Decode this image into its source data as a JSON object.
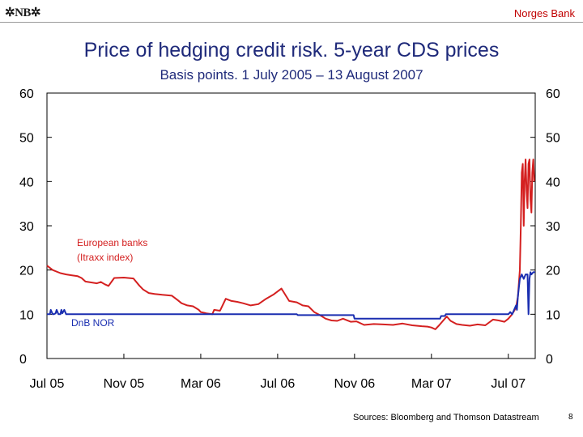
{
  "header": {
    "logo_text": "✲NB✲",
    "bank_name": "Norges Bank"
  },
  "chart_data": {
    "type": "line",
    "title": "Price of hedging credit risk. 5-year CDS prices",
    "subtitle": "Basis points. 1 July 2005 – 13 August 2007",
    "xlabel": "",
    "ylabel": "",
    "ylim": [
      0,
      60
    ],
    "yticks": [
      0,
      10,
      20,
      30,
      40,
      50,
      60
    ],
    "xlim_months": [
      0,
      25.4
    ],
    "xtick_labels": [
      "Jul 05",
      "Nov 05",
      "Mar 06",
      "Jul 06",
      "Nov 06",
      "Mar 07",
      "Jul 07"
    ],
    "xtick_months": [
      0,
      4,
      8,
      12,
      16,
      20,
      24
    ],
    "grid": false,
    "series": [
      {
        "name": "European banks (Itraxx index)",
        "label_lines": [
          "European banks",
          "(Itraxx index)"
        ],
        "color": "#d42020",
        "x": [
          0,
          0.3,
          0.7,
          1.0,
          1.3,
          1.6,
          1.8,
          2.0,
          2.3,
          2.6,
          2.8,
          3.0,
          3.2,
          3.5,
          4.0,
          4.5,
          4.8,
          5.0,
          5.3,
          5.6,
          6.0,
          6.5,
          6.8,
          7.0,
          7.3,
          7.6,
          7.9,
          8.0,
          8.3,
          8.6,
          8.7,
          9.0,
          9.3,
          9.6,
          9.9,
          10.2,
          10.6,
          11.0,
          11.4,
          11.8,
          12.2,
          12.6,
          13.0,
          13.3,
          13.6,
          13.9,
          14.2,
          14.5,
          14.8,
          15.1,
          15.4,
          15.8,
          16.1,
          16.5,
          17.0,
          17.5,
          18.0,
          18.5,
          19.0,
          19.5,
          19.8,
          20.0,
          20.2,
          20.4,
          20.6,
          20.8,
          21.0,
          21.3,
          21.6,
          22.0,
          22.4,
          22.8,
          23.2,
          23.5,
          23.8,
          24.0,
          24.2,
          24.4,
          24.5,
          24.6,
          24.65,
          24.7,
          24.75,
          24.8,
          24.85,
          24.9,
          24.95,
          25.0,
          25.05,
          25.1,
          25.15,
          25.2,
          25.25,
          25.3,
          25.35
        ],
        "values": [
          21.0,
          20.0,
          19.3,
          19.0,
          18.8,
          18.6,
          18.2,
          17.4,
          17.2,
          17.0,
          17.3,
          16.8,
          16.4,
          18.2,
          18.3,
          18.1,
          16.5,
          15.6,
          14.8,
          14.6,
          14.4,
          14.2,
          13.2,
          12.5,
          12.0,
          11.8,
          11.0,
          10.5,
          10.2,
          10.0,
          11.0,
          10.8,
          13.5,
          13.0,
          12.8,
          12.5,
          12.0,
          12.3,
          13.5,
          14.5,
          15.8,
          13.0,
          12.7,
          12.0,
          11.8,
          10.5,
          9.8,
          9.0,
          8.6,
          8.5,
          9.0,
          8.3,
          8.4,
          7.6,
          7.8,
          7.7,
          7.6,
          7.9,
          7.5,
          7.3,
          7.2,
          7.0,
          6.6,
          7.5,
          8.5,
          9.5,
          8.5,
          7.8,
          7.6,
          7.4,
          7.7,
          7.5,
          8.8,
          8.6,
          8.3,
          9.0,
          10.0,
          11.5,
          14.0,
          20.0,
          30.0,
          42.0,
          44.0,
          30.0,
          40.0,
          45.0,
          38.0,
          34.0,
          44.0,
          45.0,
          36.0,
          33.0,
          42.0,
          45.0,
          40.0
        ]
      },
      {
        "name": "DnB NOR",
        "label_lines": [
          "DnB NOR"
        ],
        "color": "#1a2eb0",
        "x": [
          0,
          0.15,
          0.2,
          0.3,
          0.35,
          0.45,
          0.5,
          0.6,
          0.7,
          0.75,
          0.8,
          0.9,
          1.0,
          1.1,
          2.0,
          4.0,
          6.0,
          8.0,
          10.0,
          12.0,
          13.0,
          13.05,
          14.0,
          15.0,
          15.95,
          16.0,
          18.0,
          20.0,
          20.45,
          20.5,
          20.7,
          20.75,
          22.0,
          23.0,
          23.5,
          23.9,
          24.0,
          24.1,
          24.2,
          24.3,
          24.4,
          24.45,
          24.5,
          24.55,
          24.6,
          24.7,
          24.8,
          24.9,
          25.0,
          25.05,
          25.1,
          25.15,
          25.2,
          25.3,
          25.4
        ],
        "values": [
          10.0,
          10.0,
          11.0,
          10.0,
          10.0,
          10.2,
          11.0,
          10.0,
          10.0,
          11.0,
          10.2,
          11.0,
          10.0,
          10.0,
          10.0,
          10.0,
          10.0,
          10.0,
          10.0,
          10.0,
          10.0,
          9.8,
          9.8,
          9.8,
          9.8,
          9.0,
          9.0,
          9.0,
          9.0,
          9.6,
          9.6,
          10.0,
          10.0,
          10.0,
          10.0,
          10.0,
          10.0,
          10.5,
          10.0,
          11.0,
          12.0,
          11.0,
          14.0,
          16.0,
          18.0,
          19.0,
          18.0,
          19.0,
          19.0,
          10.0,
          18.0,
          19.5,
          19.0,
          19.5,
          19.5
        ]
      }
    ]
  },
  "footer": {
    "sources": "Sources: Bloomberg and Thomson Datastream",
    "page_number": "8"
  }
}
